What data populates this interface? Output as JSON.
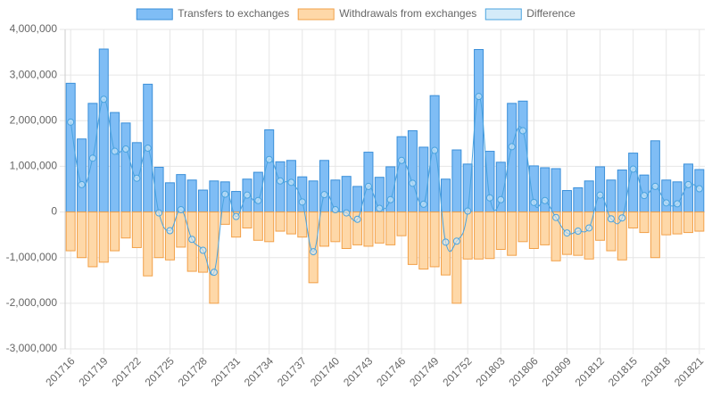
{
  "chart_data": {
    "type": "bar",
    "categories": [
      "201716",
      null,
      null,
      "201719",
      null,
      null,
      "201722",
      null,
      null,
      "201725",
      null,
      null,
      "201728",
      null,
      null,
      "201731",
      null,
      null,
      "201734",
      null,
      null,
      "201737",
      null,
      null,
      "201740",
      null,
      null,
      "201743",
      null,
      null,
      "201746",
      null,
      null,
      "201749",
      null,
      null,
      "201752",
      null,
      null,
      "201803",
      null,
      null,
      "201806",
      null,
      null,
      "201809",
      null,
      null,
      "201812",
      null,
      null,
      "201815",
      null,
      null,
      "201818",
      null,
      null,
      "201821"
    ],
    "series": [
      {
        "name": "Transfers to exchanges",
        "type": "bar",
        "color": "#7fbdf5",
        "border": "#3a8fd9",
        "values": [
          2820000,
          1600000,
          2380000,
          3570000,
          2180000,
          1950000,
          1520000,
          2800000,
          980000,
          640000,
          820000,
          700000,
          480000,
          680000,
          660000,
          450000,
          720000,
          870000,
          1800000,
          1100000,
          1130000,
          770000,
          680000,
          1130000,
          700000,
          780000,
          560000,
          1310000,
          760000,
          990000,
          1650000,
          1780000,
          1420000,
          2550000,
          720000,
          1360000,
          1050000,
          3560000,
          1330000,
          1090000,
          2380000,
          2430000,
          1010000,
          970000,
          950000,
          470000,
          530000,
          680000,
          990000,
          700000,
          920000,
          1290000,
          810000,
          1560000,
          700000,
          660000,
          1050000,
          930000
        ]
      },
      {
        "name": "Withdrawals from exchanges",
        "type": "bar",
        "color": "#fed8a8",
        "border": "#f2a048",
        "values": [
          -850000,
          -1000000,
          -1200000,
          -1100000,
          -850000,
          -570000,
          -780000,
          -1400000,
          -1000000,
          -1050000,
          -770000,
          -1300000,
          -1320000,
          -2000000,
          -270000,
          -550000,
          -350000,
          -620000,
          -650000,
          -420000,
          -480000,
          -550000,
          -1550000,
          -750000,
          -650000,
          -800000,
          -720000,
          -750000,
          -680000,
          -720000,
          -520000,
          -1150000,
          -1250000,
          -1200000,
          -1380000,
          -2000000,
          -1030000,
          -1030000,
          -1020000,
          -820000,
          -950000,
          -650000,
          -800000,
          -720000,
          -1070000,
          -930000,
          -950000,
          -1030000,
          -620000,
          -850000,
          -1050000,
          -350000,
          -450000,
          -1000000,
          -500000,
          -480000,
          -450000,
          -420000
        ]
      },
      {
        "name": "Difference",
        "type": "line",
        "color": "#d4ebf9",
        "border": "#4aa3df",
        "values": [
          1970000,
          600000,
          1180000,
          2470000,
          1330000,
          1380000,
          740000,
          1400000,
          -20000,
          -410000,
          50000,
          -600000,
          -840000,
          -1320000,
          390000,
          -100000,
          370000,
          250000,
          1150000,
          680000,
          650000,
          220000,
          -870000,
          380000,
          50000,
          -20000,
          -160000,
          560000,
          80000,
          270000,
          1130000,
          630000,
          170000,
          1350000,
          -660000,
          -640000,
          20000,
          2530000,
          310000,
          270000,
          1430000,
          1780000,
          210000,
          250000,
          -120000,
          -460000,
          -420000,
          -350000,
          370000,
          -150000,
          -130000,
          940000,
          360000,
          560000,
          200000,
          180000,
          600000,
          510000
        ]
      }
    ],
    "ylim": [
      -3000000,
      4000000
    ],
    "yticks": [
      {
        "value": -3000000,
        "label": "-3,000,000"
      },
      {
        "value": -2000000,
        "label": "-2,000,000"
      },
      {
        "value": -1000000,
        "label": "-1,000,000"
      },
      0,
      {
        "value": 1000000,
        "label": "1,000,000"
      },
      {
        "value": 2000000,
        "label": "2,000,000"
      },
      {
        "value": 3000000,
        "label": "3,000,000"
      },
      {
        "value": 4000000,
        "label": "4,000,000"
      }
    ],
    "grid": true,
    "legend": "top"
  }
}
